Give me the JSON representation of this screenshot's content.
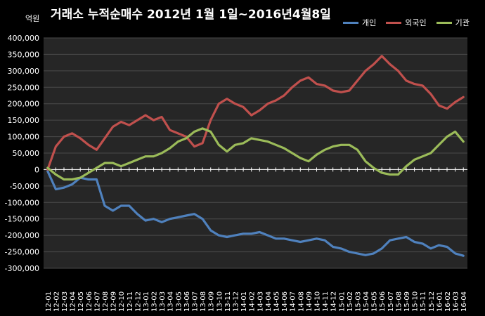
{
  "chart_data": {
    "type": "line",
    "title": "거래소 누적순매수 2012년 1월 1일~2016년4월8일",
    "unit_label": "억원",
    "ylim": [
      -300000,
      400000
    ],
    "y_ticks": [
      400000,
      350000,
      300000,
      250000,
      200000,
      150000,
      100000,
      50000,
      0,
      -50000,
      -100000,
      -150000,
      -200000,
      -250000,
      -300000
    ],
    "y_tick_labels": [
      "400,000",
      "350,000",
      "300,000",
      "250,000",
      "200,000",
      "150,000",
      "100,000",
      "50,000",
      "0",
      "-50,000",
      "-100,000",
      "-150,000",
      "-200,000",
      "-250,000",
      "-300,000"
    ],
    "categories": [
      "12-01",
      "12-02",
      "12-03",
      "12-04",
      "12-05",
      "12-06",
      "12-07",
      "12-08",
      "12-09",
      "12-10",
      "12-11",
      "12-12",
      "13-01",
      "13-02",
      "13-03",
      "13-04",
      "13-05",
      "13-06",
      "13-07",
      "13-08",
      "13-09",
      "13-10",
      "13-11",
      "13-12",
      "14-01",
      "14-02",
      "14-03",
      "14-04",
      "14-05",
      "14-06",
      "14-07",
      "14-08",
      "14-09",
      "14-10",
      "14-11",
      "14-12",
      "15-01",
      "15-02",
      "15-03",
      "15-04",
      "15-05",
      "15-06",
      "15-07",
      "15-08",
      "15-09",
      "15-10",
      "15-11",
      "15-12",
      "16-01",
      "16-02",
      "16-03",
      "16-04"
    ],
    "grid": true,
    "legend_position": "top-right",
    "series": [
      {
        "name": "개인",
        "color": "#4f81bd",
        "values": [
          -5000,
          -60000,
          -55000,
          -45000,
          -25000,
          -30000,
          -30000,
          -110000,
          -125000,
          -110000,
          -110000,
          -135000,
          -155000,
          -150000,
          -160000,
          -150000,
          -145000,
          -140000,
          -135000,
          -150000,
          -185000,
          -200000,
          -205000,
          -200000,
          -195000,
          -195000,
          -190000,
          -200000,
          -210000,
          -210000,
          -215000,
          -220000,
          -215000,
          -210000,
          -215000,
          -235000,
          -240000,
          -250000,
          -255000,
          -260000,
          -255000,
          -240000,
          -215000,
          -210000,
          -205000,
          -220000,
          -225000,
          -240000,
          -230000,
          -235000,
          -255000,
          -262000
        ]
      },
      {
        "name": "외국인",
        "color": "#c0504d",
        "values": [
          0,
          70000,
          100000,
          110000,
          95000,
          75000,
          60000,
          95000,
          130000,
          145000,
          135000,
          150000,
          165000,
          150000,
          160000,
          120000,
          110000,
          100000,
          70000,
          80000,
          150000,
          200000,
          215000,
          200000,
          190000,
          165000,
          180000,
          200000,
          210000,
          225000,
          250000,
          270000,
          280000,
          260000,
          255000,
          240000,
          235000,
          240000,
          270000,
          300000,
          320000,
          345000,
          320000,
          300000,
          270000,
          260000,
          255000,
          230000,
          195000,
          185000,
          205000,
          220000
        ]
      },
      {
        "name": "기관",
        "color": "#9bbb59",
        "values": [
          5000,
          -15000,
          -30000,
          -30000,
          -25000,
          -10000,
          5000,
          20000,
          20000,
          10000,
          20000,
          30000,
          40000,
          40000,
          50000,
          65000,
          85000,
          95000,
          115000,
          125000,
          115000,
          75000,
          55000,
          75000,
          80000,
          95000,
          90000,
          85000,
          75000,
          65000,
          50000,
          35000,
          25000,
          45000,
          60000,
          70000,
          75000,
          75000,
          60000,
          25000,
          5000,
          -10000,
          -15000,
          -15000,
          10000,
          30000,
          40000,
          50000,
          75000,
          100000,
          115000,
          85000
        ]
      }
    ]
  }
}
